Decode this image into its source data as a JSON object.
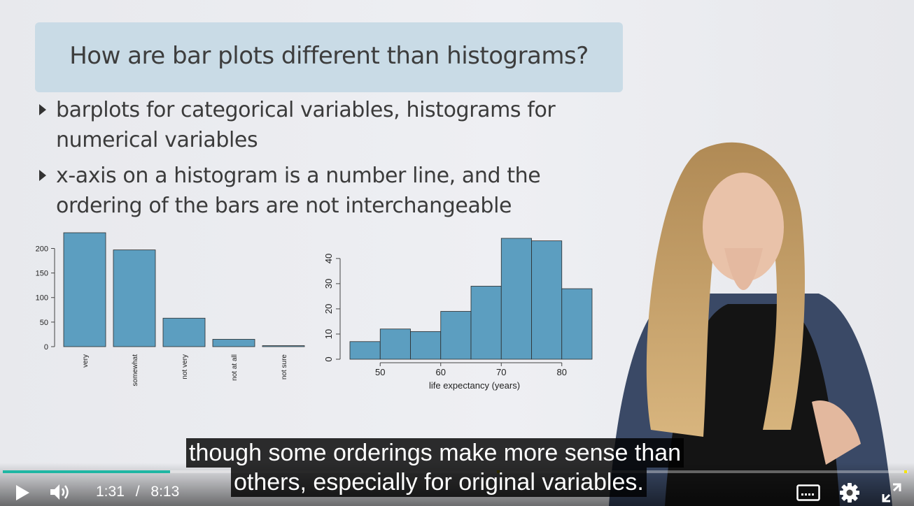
{
  "slide": {
    "title": "How are bar plots different than histograms?",
    "bullets": [
      "barplots for categorical variables, histograms for numerical variables",
      "x-axis on a histogram is a number line, and the ordering of the bars are not interchangeable"
    ]
  },
  "chart_data": [
    {
      "type": "bar",
      "categories": [
        "very",
        "somewhat",
        "not very",
        "not at all",
        "not sure"
      ],
      "values": [
        232,
        197,
        58,
        15,
        2
      ],
      "yticks": [
        0,
        50,
        100,
        150,
        200
      ],
      "ylim": [
        0,
        232
      ],
      "xlabel": "",
      "ylabel": "",
      "color": "#5c9ec0"
    },
    {
      "type": "bar",
      "x_bins": [
        [
          45,
          50
        ],
        [
          50,
          55
        ],
        [
          55,
          60
        ],
        [
          60,
          65
        ],
        [
          65,
          70
        ],
        [
          70,
          75
        ],
        [
          75,
          80
        ],
        [
          80,
          85
        ]
      ],
      "values": [
        7,
        12,
        11,
        19,
        29,
        48,
        47,
        28
      ],
      "xticks": [
        50,
        60,
        70,
        80
      ],
      "yticks": [
        0,
        10,
        20,
        30,
        40
      ],
      "xlim": [
        45,
        85
      ],
      "ylim": [
        0,
        48
      ],
      "xlabel": "life expectancy (years)",
      "ylabel": "",
      "color": "#5c9ec0"
    }
  ],
  "captions": [
    "though some orderings make more sense than",
    "others, especially for original variables."
  ],
  "player": {
    "current_time": "1:31",
    "separator": "/",
    "duration": "8:13",
    "progress_fraction": 0.185,
    "accent": "#1fb6a3",
    "icons": [
      "play-icon",
      "volume-icon",
      "captions-icon",
      "settings-icon",
      "fullscreen-icon"
    ]
  }
}
